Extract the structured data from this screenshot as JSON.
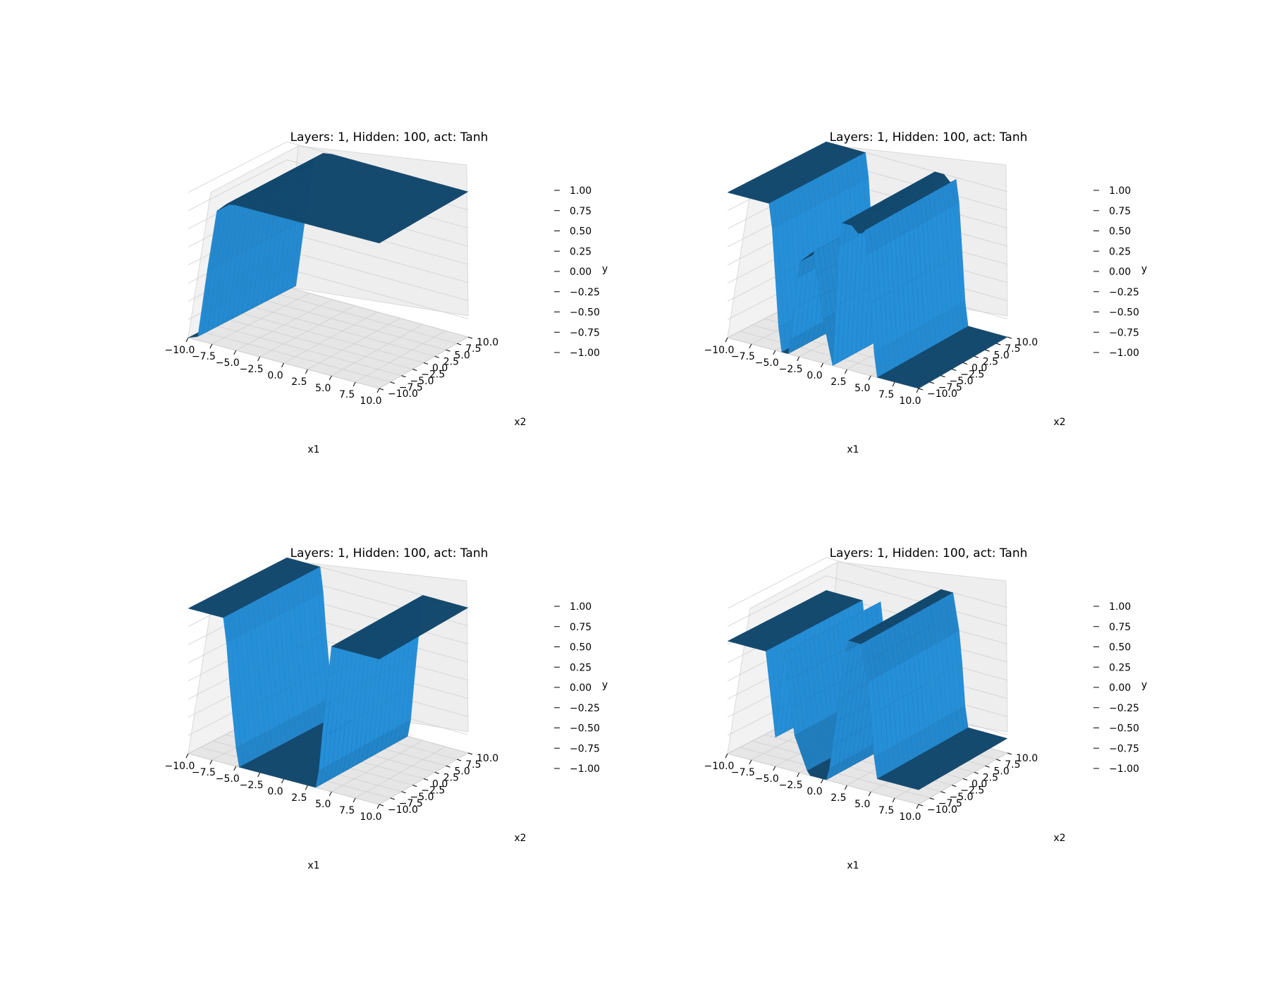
{
  "chart_data": [
    {
      "type": "surface",
      "title": "Layers: 1, Hidden: 100, act: Tanh",
      "xlabel": "x1",
      "ylabel": "x2",
      "zlabel": "y",
      "x_ticks": [
        "−10.0",
        "−7.5",
        "−5.0",
        "−2.5",
        "0.0",
        "2.5",
        "5.0",
        "7.5",
        "10.0"
      ],
      "y_ticks": [
        "−10.0",
        "−7.5",
        "−5.0",
        "−2.5",
        "0.0",
        "2.5",
        "5.0",
        "7.5",
        "10.0"
      ],
      "z_ticks": [
        "−1.00",
        "−0.75",
        "−0.50",
        "−0.25",
        "0.00",
        "0.25",
        "0.50",
        "0.75",
        "1.00"
      ],
      "xlim": [
        -10,
        10
      ],
      "ylim": [
        -10,
        10
      ],
      "zlim": [
        -1,
        1
      ],
      "surface_color": "#1f77b4",
      "surface": {
        "kind": "x_step",
        "x": [
          -10,
          -9,
          -8,
          -7,
          -6,
          -5,
          10
        ],
        "y": [
          -1.0,
          -0.95,
          0.0,
          0.85,
          0.98,
          1.0,
          1.0
        ]
      }
    },
    {
      "type": "surface",
      "title": "Layers: 1, Hidden: 100, act: Tanh",
      "xlabel": "x1",
      "ylabel": "x2",
      "zlabel": "y",
      "x_ticks": [
        "−10.0",
        "−7.5",
        "−5.0",
        "−2.5",
        "0.0",
        "2.5",
        "5.0",
        "7.5",
        "10.0"
      ],
      "y_ticks": [
        "−10.0",
        "−7.5",
        "−5.0",
        "−2.5",
        "0.0",
        "2.5",
        "5.0",
        "7.5",
        "10.0"
      ],
      "z_ticks": [
        "−1.00",
        "−0.75",
        "−0.50",
        "−0.25",
        "0.00",
        "0.25",
        "0.50",
        "0.75",
        "1.00"
      ],
      "xlim": [
        -10,
        10
      ],
      "ylim": [
        -10,
        10
      ],
      "zlim": [
        -1,
        1
      ],
      "surface_color": "#1f77b4",
      "surface": {
        "kind": "x_profile",
        "x": [
          -10,
          -5.5,
          -4.5,
          -3.5,
          -2.5,
          -1.0,
          0.0,
          1.0,
          1.8,
          3.0,
          3.8,
          4.5,
          5.5,
          10
        ],
        "y": [
          1.0,
          1.0,
          -1.0,
          -1.0,
          0.3,
          0.5,
          -0.4,
          -1.0,
          1.0,
          1.0,
          0.9,
          1.0,
          -1.0,
          -1.0
        ]
      }
    },
    {
      "type": "surface",
      "title": "Layers: 1, Hidden: 100, act: Tanh",
      "xlabel": "x1",
      "ylabel": "x2",
      "zlabel": "y",
      "x_ticks": [
        "−10.0",
        "−7.5",
        "−5.0",
        "−2.5",
        "0.0",
        "2.5",
        "5.0",
        "7.5",
        "10.0"
      ],
      "y_ticks": [
        "−10.0",
        "−7.5",
        "−5.0",
        "−2.5",
        "0.0",
        "2.5",
        "5.0",
        "7.5",
        "10.0"
      ],
      "z_ticks": [
        "−1.00",
        "−0.75",
        "−0.50",
        "−0.25",
        "0.00",
        "0.25",
        "0.50",
        "0.75",
        "1.00"
      ],
      "xlim": [
        -10,
        10
      ],
      "ylim": [
        -10,
        10
      ],
      "zlim": [
        -1,
        1
      ],
      "surface_color": "#1f77b4",
      "surface": {
        "kind": "x_profile",
        "x": [
          -10,
          -6.2,
          -5.6,
          -4.8,
          3.5,
          4.2,
          5.0,
          10
        ],
        "y": [
          1.0,
          1.0,
          0.0,
          -1.0,
          -1.0,
          0.0,
          1.0,
          1.0
        ]
      }
    },
    {
      "type": "surface",
      "title": "Layers: 1, Hidden: 100, act: Tanh",
      "xlabel": "x1",
      "ylabel": "x2",
      "zlabel": "y",
      "x_ticks": [
        "−10.0",
        "−7.5",
        "−5.0",
        "−2.5",
        "0.0",
        "2.5",
        "5.0",
        "7.5",
        "10.0"
      ],
      "y_ticks": [
        "−10.0",
        "−7.5",
        "−5.0",
        "−2.5",
        "0.0",
        "2.5",
        "5.0",
        "7.5",
        "10.0"
      ],
      "z_ticks": [
        "−1.00",
        "−0.75",
        "−0.50",
        "−0.25",
        "0.00",
        "0.25",
        "0.50",
        "0.75",
        "1.00"
      ],
      "xlim": [
        -10,
        10
      ],
      "ylim": [
        -10,
        10
      ],
      "zlim": [
        -1,
        1
      ],
      "surface_color": "#1f77b4",
      "surface": {
        "kind": "x_profile",
        "x": [
          -10,
          -6.0,
          -5.0,
          -4.0,
          -3.0,
          -1.5,
          0.5,
          1.5,
          2.5,
          4.0,
          4.8,
          5.5,
          10
        ],
        "y": [
          0.55,
          0.55,
          -0.6,
          0.6,
          -0.5,
          -1.0,
          -1.0,
          0.0,
          1.0,
          1.0,
          0.4,
          -0.8,
          -0.8
        ]
      }
    }
  ]
}
